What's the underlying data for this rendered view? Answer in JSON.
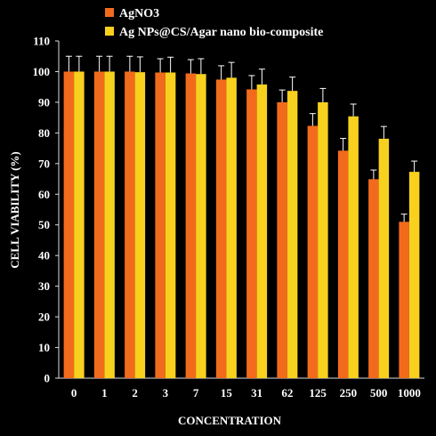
{
  "chart_data": {
    "type": "bar",
    "xlabel": "CONCENTRATION",
    "ylabel": "CELL VIABILITY (%)",
    "ylim": [
      0,
      110
    ],
    "yticks": [
      0,
      10,
      20,
      30,
      40,
      50,
      60,
      70,
      80,
      90,
      100,
      110
    ],
    "categories": [
      "0",
      "1",
      "2",
      "3",
      "7",
      "15",
      "31",
      "62",
      "125",
      "250",
      "500",
      "1000"
    ],
    "legend_position": "top-left",
    "grid": false,
    "series": [
      {
        "name": "AgNO3",
        "color": "#F26B1D",
        "values": [
          100,
          100,
          100,
          99.7,
          99.4,
          97.4,
          94.2,
          90,
          82.3,
          74.2,
          64.9,
          51
        ],
        "errors": [
          5,
          5,
          5,
          4.5,
          4.5,
          4.5,
          4.5,
          4,
          4,
          4,
          3,
          2.5
        ]
      },
      {
        "name": "Ag NPs@CS/Agar nano bio-composite",
        "color": "#F7D11E",
        "values": [
          100,
          100,
          99.8,
          99.7,
          99.2,
          98,
          95.8,
          93.7,
          90,
          85.4,
          78.1,
          67.3
        ],
        "errors": [
          5,
          5,
          5,
          5,
          5,
          5,
          5,
          4.5,
          4.5,
          4,
          4,
          3.5
        ]
      }
    ]
  }
}
